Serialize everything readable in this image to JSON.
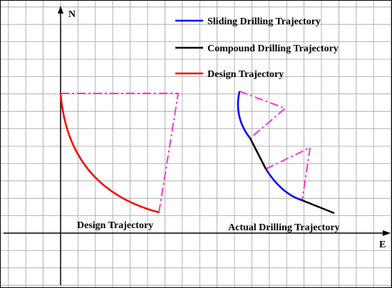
{
  "axes": {
    "north_label": "N",
    "east_label": "E"
  },
  "legend": {
    "items": [
      {
        "label": "Sliding Drilling Trajectory",
        "color": "#0000ff"
      },
      {
        "label": "Compound Drilling Trajectory",
        "color": "#000000"
      },
      {
        "label": "Design Trajectory",
        "color": "#ff0000"
      }
    ]
  },
  "captions": {
    "design": "Design Trajectory",
    "actual": "Actual Drilling Trajectory"
  },
  "colors": {
    "grid": "#a0a0a0",
    "construction": "#ff33cc",
    "sliding": "#0000ff",
    "compound": "#000000",
    "design": "#ff0000"
  }
}
